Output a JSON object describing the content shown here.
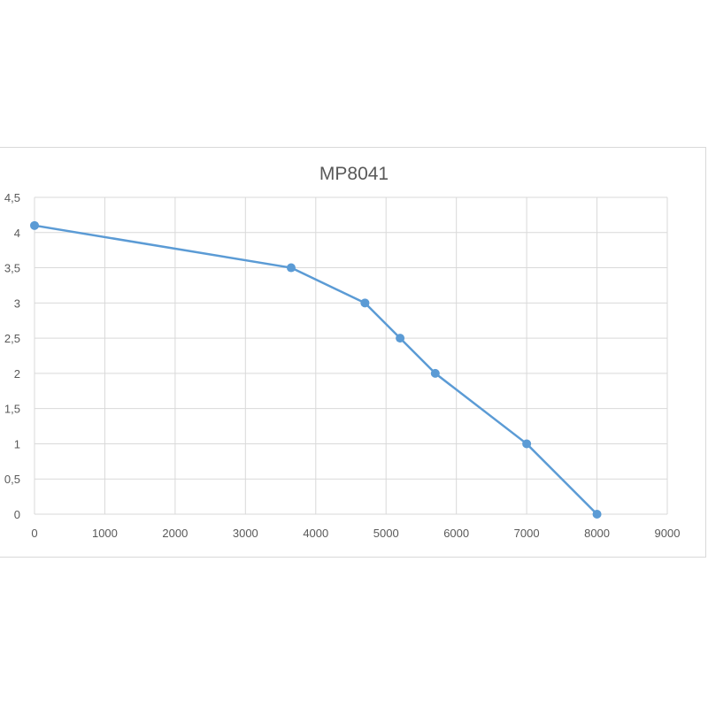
{
  "chart_data": {
    "type": "line",
    "title": "MP8041",
    "xlabel": "",
    "ylabel": "",
    "xlim": [
      0,
      9000
    ],
    "ylim": [
      0,
      4.5
    ],
    "x_ticks": [
      0,
      1000,
      2000,
      3000,
      4000,
      5000,
      6000,
      7000,
      8000,
      9000
    ],
    "x_tick_labels": [
      "0",
      "1000",
      "2000",
      "3000",
      "4000",
      "5000",
      "6000",
      "7000",
      "8000",
      "9000"
    ],
    "y_ticks": [
      0,
      0.5,
      1,
      1.5,
      2,
      2.5,
      3,
      3.5,
      4,
      4.5
    ],
    "y_tick_labels": [
      "0",
      "0,5",
      "1",
      "1,5",
      "2",
      "2,5",
      "3",
      "3,5",
      "4",
      "4,5"
    ],
    "grid": true,
    "legend": "none",
    "series": [
      {
        "x": [
          0,
          3650,
          4700,
          5200,
          5700,
          7000,
          8000
        ],
        "y": [
          4.1,
          3.5,
          3.0,
          2.5,
          2.0,
          1.0,
          0
        ],
        "color": "#5b9bd5"
      }
    ],
    "colors": {
      "grid": "#d9d9d9",
      "axis": "#d9d9d9",
      "text": "#595959"
    }
  }
}
